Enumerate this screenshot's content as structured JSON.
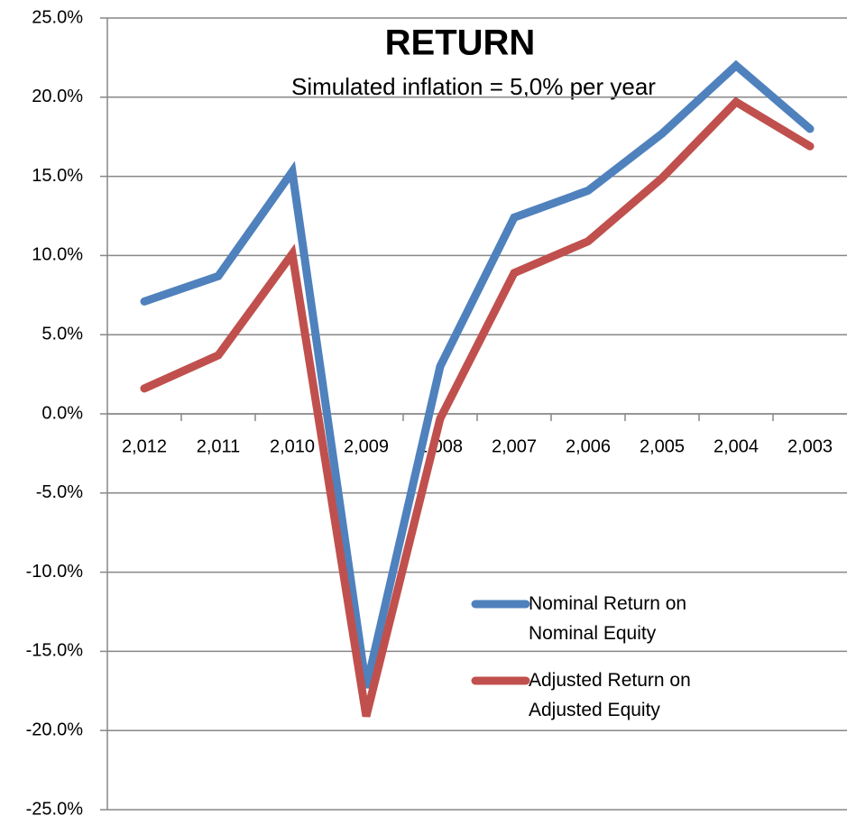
{
  "chart_data": {
    "type": "line",
    "title": "RETURN",
    "subtitle": "Simulated inflation = 5,0% per year",
    "categories": [
      "2,012",
      "2,011",
      "2,010",
      "2,009",
      "2,008",
      "2,007",
      "2,006",
      "2,005",
      "2,004",
      "2,003"
    ],
    "series": [
      {
        "name": "Nominal Return on Nominal Equity",
        "color": "#4f81bd",
        "values": [
          7.1,
          8.7,
          15.3,
          -17.3,
          3.0,
          12.4,
          14.1,
          17.7,
          22.0,
          18.0
        ]
      },
      {
        "name": "Adjusted Return on Adjusted Equity",
        "color": "#c0504d",
        "values": [
          1.6,
          3.7,
          10.1,
          -19.1,
          -0.3,
          8.9,
          10.9,
          14.9,
          19.7,
          16.9
        ]
      }
    ],
    "ylim": [
      -25,
      25
    ],
    "yticks": [
      {
        "value": 25,
        "label": "25.0%"
      },
      {
        "value": 20,
        "label": "20.0%"
      },
      {
        "value": 15,
        "label": "15.0%"
      },
      {
        "value": 10,
        "label": "10.0%"
      },
      {
        "value": 5,
        "label": "5.0%"
      },
      {
        "value": 0,
        "label": "0.0%"
      },
      {
        "value": -5,
        "label": "-5.0%"
      },
      {
        "value": -10,
        "label": "-10.0%"
      },
      {
        "value": -15,
        "label": "-15.0%"
      },
      {
        "value": -20,
        "label": "-20.0%"
      },
      {
        "value": -25,
        "label": "-25.0%"
      }
    ],
    "grid": true
  }
}
